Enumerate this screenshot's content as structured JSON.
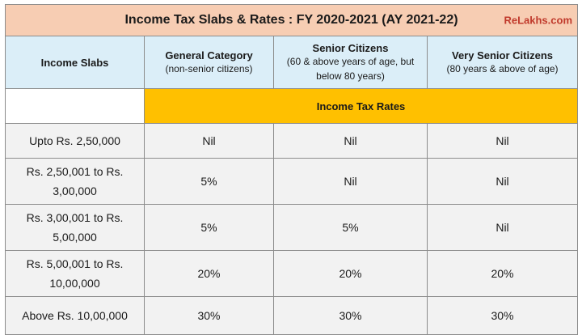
{
  "title": "Income Tax Slabs & Rates : FY 2020-2021 (AY 2021-22)",
  "brand": "ReLakhs.com",
  "headers": {
    "slabs": "Income Slabs",
    "general": {
      "main": "General Category",
      "sub": "(non-senior citizens)"
    },
    "senior": {
      "main": "Senior Citizens",
      "sub1": "(60 & above years of age, but",
      "sub2": "below 80 years)"
    },
    "very_senior": {
      "main": "Very Senior Citizens",
      "sub": "(80 years & above of age)"
    }
  },
  "rates_label": "Income Tax Rates",
  "rows": [
    {
      "slab1": "Upto Rs. 2,50,000",
      "slab2": "",
      "general": "Nil",
      "senior": "Nil",
      "very_senior": "Nil"
    },
    {
      "slab1": "Rs. 2,50,001 to Rs.",
      "slab2": "3,00,000",
      "general": "5%",
      "senior": "Nil",
      "very_senior": "Nil"
    },
    {
      "slab1": "Rs. 3,00,001 to Rs.",
      "slab2": "5,00,000",
      "general": "5%",
      "senior": "5%",
      "very_senior": "Nil"
    },
    {
      "slab1": "Rs. 5,00,001 to Rs.",
      "slab2": "10,00,000",
      "general": "20%",
      "senior": "20%",
      "very_senior": "20%"
    },
    {
      "slab1": "Above Rs. 10,00,000",
      "slab2": "",
      "general": "30%",
      "senior": "30%",
      "very_senior": "30%"
    }
  ]
}
